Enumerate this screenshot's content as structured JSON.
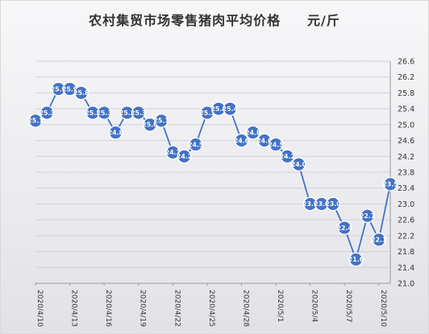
{
  "chart_data": {
    "type": "line",
    "title": "农村集贸市场零售猪肉平均价格",
    "unit": "元/斤",
    "x": [
      "2020/4/10",
      "2020/4/11",
      "2020/4/12",
      "2020/4/13",
      "2020/4/14",
      "2020/4/15",
      "2020/4/16",
      "2020/4/17",
      "2020/4/18",
      "2020/4/19",
      "2020/4/20",
      "2020/4/21",
      "2020/4/22",
      "2020/4/23",
      "2020/4/24",
      "2020/4/25",
      "2020/4/26",
      "2020/4/27",
      "2020/4/28",
      "2020/4/29",
      "2020/4/30",
      "2020/5/1",
      "2020/5/2",
      "2020/5/3",
      "2020/5/4",
      "2020/5/5",
      "2020/5/6",
      "2020/5/7",
      "2020/5/8",
      "2020/5/9",
      "2020/5/10",
      "2020/5/11"
    ],
    "xtick_labels": [
      "2020/4/10",
      "2020/4/13",
      "2020/4/16",
      "2020/4/19",
      "2020/4/22",
      "2020/4/25",
      "2020/4/28",
      "2020/5/1",
      "2020/5/4",
      "2020/5/7",
      "2020/5/10"
    ],
    "values": [
      25.1,
      25.3,
      25.9,
      25.9,
      25.8,
      25.3,
      25.3,
      24.8,
      25.3,
      25.3,
      25.0,
      25.1,
      24.3,
      24.2,
      24.5,
      25.3,
      25.4,
      25.4,
      24.6,
      24.8,
      24.6,
      24.5,
      24.2,
      24.0,
      23.0,
      23.0,
      23.0,
      22.4,
      21.6,
      22.7,
      22.1,
      23.5
    ],
    "ylim": [
      21.0,
      26.6
    ],
    "yticks": [
      "21.0",
      "21.4",
      "21.8",
      "22.2",
      "22.6",
      "23.0",
      "23.4",
      "23.8",
      "24.2",
      "24.6",
      "25.0",
      "25.4",
      "25.8",
      "26.2",
      "26.6"
    ],
    "ytick_values": [
      21.0,
      21.4,
      21.8,
      22.2,
      22.6,
      23.0,
      23.4,
      23.8,
      24.2,
      24.6,
      25.0,
      25.4,
      25.8,
      26.2,
      26.6
    ],
    "y_axis_side": "right",
    "grid": true,
    "colors": {
      "series": "#4472c4",
      "grid": "#d2d2d6"
    }
  }
}
